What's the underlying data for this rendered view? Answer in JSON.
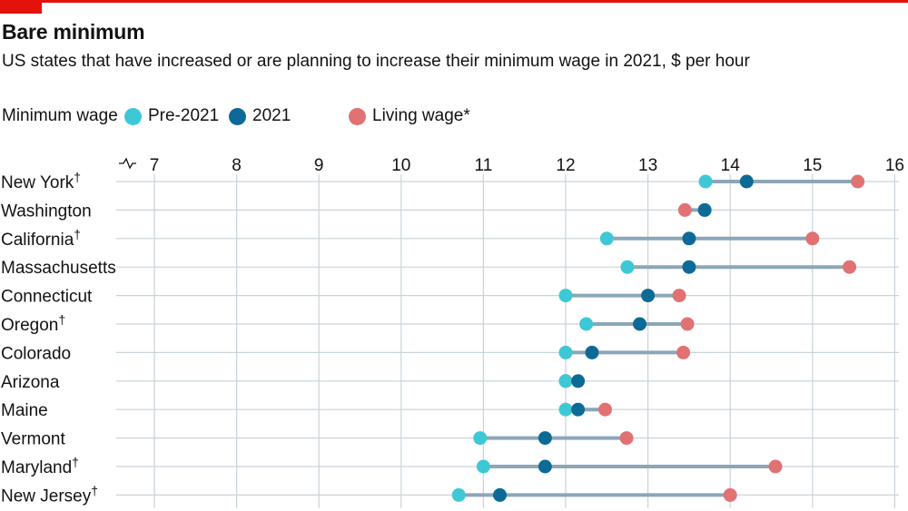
{
  "header": {
    "title": "Bare minimum",
    "subtitle": "US states that have increased or are planning to increase their minimum wage in 2021, $ per hour"
  },
  "legend": {
    "group_label": "Minimum wage",
    "items": [
      {
        "label": "Pre-2021",
        "color": "#3ec8d6"
      },
      {
        "label": "2021",
        "color": "#0d6a96"
      },
      {
        "label": "Living wage*",
        "color": "#e07274"
      }
    ]
  },
  "chart_data": {
    "type": "dot-range",
    "title": "Bare minimum",
    "subtitle": "US states that have increased or are planning to increase their minimum wage in 2021, $ per hour",
    "x_ticks": [
      "7",
      "8",
      "9",
      "10",
      "11",
      "12",
      "13",
      "14",
      "15",
      "16"
    ],
    "xlim": [
      6.7,
      16
    ],
    "axis_break": true,
    "grid": true,
    "legend_position": "top-left",
    "colors": {
      "pre_2021": "#3ec8d6",
      "y2021": "#0d6a96",
      "living_wage": "#e07274",
      "connector": "#8ca6b7",
      "grid": "#c9d3d9"
    },
    "series": [
      {
        "name": "Pre-2021",
        "key": "pre_2021"
      },
      {
        "name": "2021",
        "key": "y2021"
      },
      {
        "name": "Living wage*",
        "key": "living_wage"
      }
    ],
    "rows": [
      {
        "state": "New York",
        "dagger": "†",
        "pre_2021": 13.7,
        "y2021": 14.2,
        "living_wage": 15.55
      },
      {
        "state": "Washington",
        "dagger": "",
        "pre_2021": 13.69,
        "y2021": 13.69,
        "living_wage": 13.45
      },
      {
        "state": "California",
        "dagger": "†",
        "pre_2021": 12.5,
        "y2021": 13.5,
        "living_wage": 15.0
      },
      {
        "state": "Massachusetts",
        "dagger": "",
        "pre_2021": 12.75,
        "y2021": 13.5,
        "living_wage": 15.45
      },
      {
        "state": "Connecticut",
        "dagger": "",
        "pre_2021": 12.0,
        "y2021": 13.0,
        "living_wage": 13.38
      },
      {
        "state": "Oregon",
        "dagger": "†",
        "pre_2021": 12.25,
        "y2021": 12.9,
        "living_wage": 13.48
      },
      {
        "state": "Colorado",
        "dagger": "",
        "pre_2021": 12.0,
        "y2021": 12.32,
        "living_wage": 13.43
      },
      {
        "state": "Arizona",
        "dagger": "",
        "pre_2021": 12.0,
        "y2021": 12.15,
        "living_wage": 12.0
      },
      {
        "state": "Maine",
        "dagger": "",
        "pre_2021": 12.0,
        "y2021": 12.15,
        "living_wage": 12.48
      },
      {
        "state": "Vermont",
        "dagger": "",
        "pre_2021": 10.96,
        "y2021": 11.75,
        "living_wage": 12.74
      },
      {
        "state": "Maryland",
        "dagger": "†",
        "pre_2021": 11.0,
        "y2021": 11.75,
        "living_wage": 14.55
      },
      {
        "state": "New Jersey",
        "dagger": "†",
        "pre_2021": 10.7,
        "y2021": 11.2,
        "living_wage": 14.0
      }
    ]
  }
}
